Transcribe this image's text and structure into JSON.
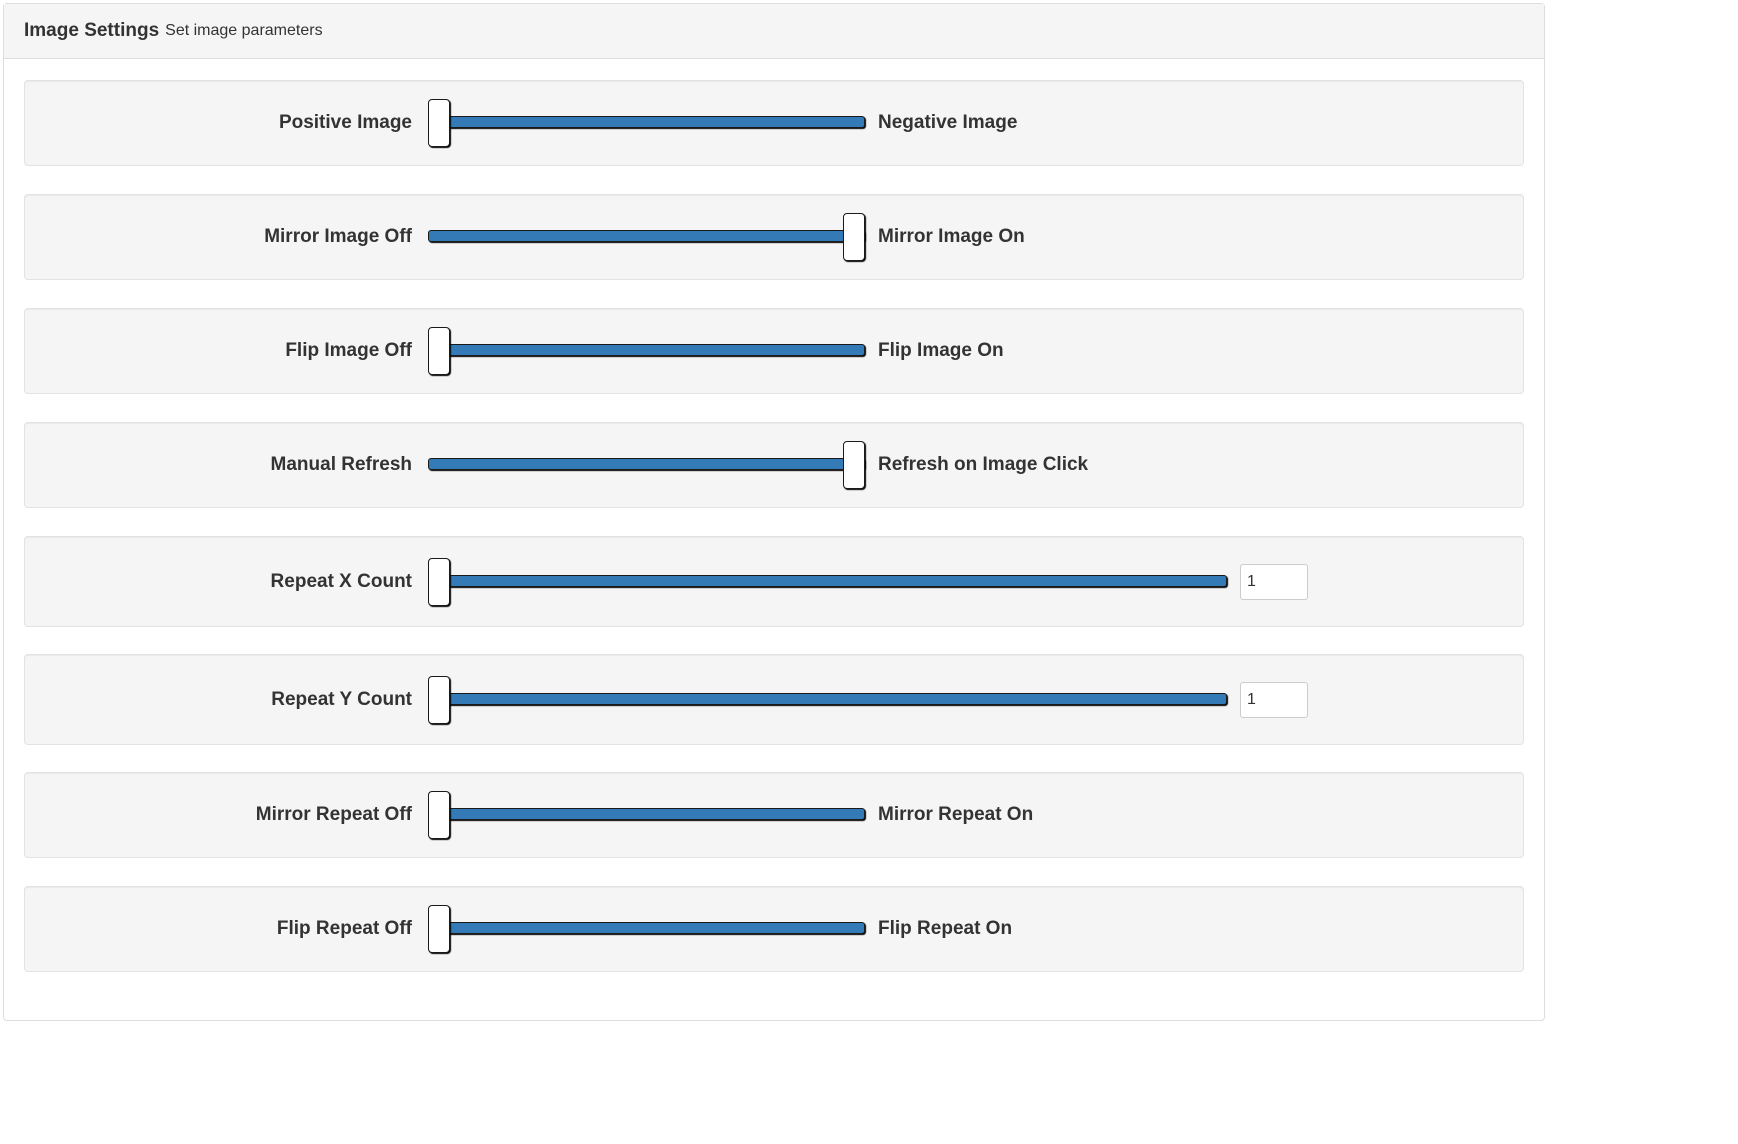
{
  "panel": {
    "title": "Image Settings",
    "subtitle": "Set image parameters"
  },
  "settings": [
    {
      "left": "Positive Image",
      "right": "Negative Image",
      "value": 0,
      "max": 1
    },
    {
      "left": "Mirror Image Off",
      "right": "Mirror Image On",
      "value": 1,
      "max": 1
    },
    {
      "left": "Flip Image Off",
      "right": "Flip Image On",
      "value": 0,
      "max": 1
    },
    {
      "left": "Manual Refresh",
      "right": "Refresh on Image Click",
      "value": 1,
      "max": 1
    },
    {
      "left": "Repeat X Count",
      "input_value": "1",
      "value": 0,
      "max": 1
    },
    {
      "left": "Repeat Y Count",
      "input_value": "1",
      "value": 0,
      "max": 1
    },
    {
      "left": "Mirror Repeat Off",
      "right": "Mirror Repeat On",
      "value": 0,
      "max": 1
    },
    {
      "left": "Flip Repeat Off",
      "right": "Flip Repeat On",
      "value": 0,
      "max": 1
    }
  ],
  "colors": {
    "track": "#337ab7",
    "well_background": "#f5f5f5",
    "handle": "#ffffff"
  }
}
